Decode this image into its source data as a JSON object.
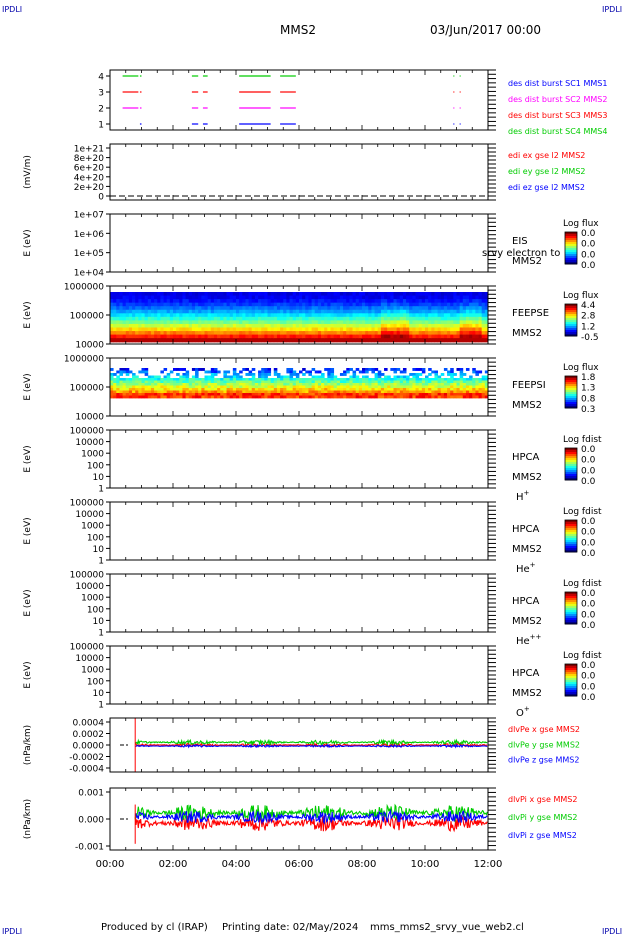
{
  "header": {
    "corner_left": "IPDLI",
    "corner_right": "IPDLI",
    "spacecraft": "MMS2",
    "date": "03/Jun/2017 00:00"
  },
  "footer": {
    "produced": "Produced by cl (IRAP)",
    "printing": "Printing date: 02/May/2024",
    "script": "mms_mms2_srvy_vue_web2.cl"
  },
  "time_axis": {
    "ticks": [
      "00:00",
      "02:00",
      "04:00",
      "06:00",
      "08:00",
      "10:00",
      "12:00"
    ],
    "range_hours": [
      0,
      12
    ]
  },
  "colors": {
    "mms1": "#0000ff",
    "mms2": "#ff00ff",
    "mms3": "#ff0000",
    "mms4": "#00cc00",
    "x": "#ff0000",
    "y": "#00cc00",
    "z": "#0000ff"
  },
  "chart_data": [
    {
      "type": "line",
      "id": "burst",
      "yticks": [
        "4",
        "3",
        "2",
        "1"
      ],
      "ylim": [
        0.5,
        4.5
      ],
      "legend": [
        {
          "label": "des dist burst SC1 MMS1",
          "color": "#0000ff"
        },
        {
          "label": "des dist burst SC2 MMS2",
          "color": "#ff00ff"
        },
        {
          "label": "des dist burst SC3 MMS3",
          "color": "#ff0000"
        },
        {
          "label": "des dist burst SC4 MMS4",
          "color": "#00cc00"
        }
      ],
      "series": [
        {
          "level": 4,
          "color": "#00cc00",
          "intervals": [
            [
              0.4,
              0.9
            ],
            [
              0.95,
              1.0
            ],
            [
              2.6,
              2.8
            ],
            [
              2.95,
              3.1
            ],
            [
              4.1,
              5.1
            ],
            [
              5.4,
              5.9
            ],
            [
              10.9,
              10.92
            ],
            [
              11.1,
              11.12
            ]
          ]
        },
        {
          "level": 3,
          "color": "#ff0000",
          "intervals": [
            [
              0.4,
              0.9
            ],
            [
              0.95,
              1.0
            ],
            [
              2.6,
              2.8
            ],
            [
              2.95,
              3.1
            ],
            [
              4.1,
              5.1
            ],
            [
              5.4,
              5.9
            ],
            [
              10.9,
              10.92
            ],
            [
              11.1,
              11.12
            ]
          ]
        },
        {
          "level": 2,
          "color": "#ff00ff",
          "intervals": [
            [
              0.4,
              0.9
            ],
            [
              0.95,
              1.0
            ],
            [
              2.6,
              2.8
            ],
            [
              2.95,
              3.1
            ],
            [
              4.1,
              5.1
            ],
            [
              5.4,
              5.9
            ],
            [
              10.9,
              10.92
            ],
            [
              11.1,
              11.12
            ]
          ]
        },
        {
          "level": 1,
          "color": "#0000ff",
          "intervals": [
            [
              0.95,
              1.0
            ],
            [
              2.6,
              2.8
            ],
            [
              2.95,
              3.1
            ],
            [
              4.1,
              5.1
            ],
            [
              5.4,
              5.9
            ],
            [
              10.9,
              10.92
            ],
            [
              11.1,
              11.12
            ]
          ]
        }
      ]
    },
    {
      "type": "line",
      "id": "efield",
      "ylabel": "(mV/m)",
      "yticks": [
        "1e+21",
        "8e+20",
        "6e+20",
        "4e+20",
        "2e+20",
        "0"
      ],
      "ylim": [
        0,
        1e+21
      ],
      "legend": [
        {
          "label": "edi ex gse l2 MMS2",
          "color": "#ff0000"
        },
        {
          "label": "edi ey gse l2 MMS2",
          "color": "#00cc00"
        },
        {
          "label": "edi ez gse l2 MMS2",
          "color": "#0000ff"
        }
      ],
      "dashed_zero": true
    },
    {
      "type": "heatmap",
      "id": "eis",
      "ylabel": "E (eV)",
      "yticks": [
        "1e+07",
        "1e+06",
        "1e+05",
        "1e+04"
      ],
      "instrument": "EIS",
      "spacecraft": "MMS2",
      "overlay_text": "srvy electron to",
      "colorbar_title": "Log flux",
      "colorbar_ticks": [
        "0.0",
        "0.0",
        "0.0",
        "0.0"
      ]
    },
    {
      "type": "heatmap",
      "id": "feepse",
      "ylabel": "E (eV)",
      "yticks": [
        "1000000",
        "100000",
        "10000"
      ],
      "instrument": "FEEPSE",
      "spacecraft": "MMS2",
      "colorbar_title": "Log flux",
      "colorbar_ticks": [
        "4.4",
        "2.8",
        "1.2",
        "-0.5"
      ],
      "band_profile": [
        0.0,
        0.15,
        0.35,
        0.55,
        0.75,
        0.85,
        0.95,
        1.0
      ]
    },
    {
      "type": "heatmap",
      "id": "feepsi",
      "ylabel": "E (eV)",
      "yticks": [
        "1000000",
        "100000",
        "10000"
      ],
      "instrument": "FEEPSI",
      "spacecraft": "MMS2",
      "colorbar_title": "Log flux",
      "colorbar_ticks": [
        "1.8",
        "1.3",
        "0.8",
        "0.3"
      ]
    },
    {
      "type": "heatmap",
      "id": "hpca_h",
      "ylabel": "E (eV)",
      "yticks": [
        "100000",
        "10000",
        "1000",
        "100",
        "10",
        "1"
      ],
      "instrument": "HPCA",
      "spacecraft": "MMS2",
      "species": "H",
      "species_sup": "+",
      "colorbar_title": "Log fdist",
      "colorbar_ticks": [
        "0.0",
        "0.0",
        "0.0",
        "0.0"
      ]
    },
    {
      "type": "heatmap",
      "id": "hpca_he",
      "ylabel": "E (eV)",
      "yticks": [
        "100000",
        "10000",
        "1000",
        "100",
        "10",
        "1"
      ],
      "instrument": "HPCA",
      "spacecraft": "MMS2",
      "species": "He",
      "species_sup": "+",
      "colorbar_title": "Log fdist",
      "colorbar_ticks": [
        "0.0",
        "0.0",
        "0.0",
        "0.0"
      ]
    },
    {
      "type": "heatmap",
      "id": "hpca_he2",
      "ylabel": "E (eV)",
      "yticks": [
        "100000",
        "10000",
        "1000",
        "100",
        "10",
        "1"
      ],
      "instrument": "HPCA",
      "spacecraft": "MMS2",
      "species": "He",
      "species_sup": "++",
      "colorbar_title": "Log fdist",
      "colorbar_ticks": [
        "0.0",
        "0.0",
        "0.0",
        "0.0"
      ]
    },
    {
      "type": "heatmap",
      "id": "hpca_o",
      "ylabel": "E (eV)",
      "yticks": [
        "100000",
        "10000",
        "1000",
        "100",
        "10",
        "1"
      ],
      "instrument": "HPCA",
      "spacecraft": "MMS2",
      "species": "O",
      "species_sup": "+",
      "colorbar_title": "Log fdist",
      "colorbar_ticks": [
        "0.0",
        "0.0",
        "0.0",
        "0.0"
      ]
    },
    {
      "type": "line",
      "id": "dpe",
      "ylabel": "(nPa/km)",
      "yticks": [
        "0.0004",
        "0.0002",
        "0.0000",
        "-0.0002",
        "-0.0004"
      ],
      "ylim": [
        -0.0005,
        0.0005
      ],
      "legend": [
        {
          "label": "dlvPe x gse MMS2",
          "color": "#ff0000"
        },
        {
          "label": "dlvPe y gse MMS2",
          "color": "#00cc00"
        },
        {
          "label": "dlvPe z gse MMS2",
          "color": "#0000ff"
        }
      ],
      "data_start_hour": 0.8,
      "series": [
        {
          "name": "x",
          "color": "#ff0000",
          "mean": 0.0,
          "noise": 3e-05
        },
        {
          "name": "y",
          "color": "#00cc00",
          "mean": 5e-05,
          "noise": 4e-05
        },
        {
          "name": "z",
          "color": "#0000ff",
          "mean": -2e-05,
          "noise": 2e-05
        }
      ],
      "spike": {
        "hour": 0.8,
        "min": -0.0005,
        "max": 0.0005
      }
    },
    {
      "type": "line",
      "id": "dpi",
      "ylabel": "(nPa/km)",
      "yticks": [
        "0.001",
        "0.000",
        "-0.001"
      ],
      "ylim": [
        -0.0015,
        0.0015
      ],
      "legend": [
        {
          "label": "dlvPi x gse MMS2",
          "color": "#ff0000"
        },
        {
          "label": "dlvPi y gse MMS2",
          "color": "#00cc00"
        },
        {
          "label": "dlvPi z gse MMS2",
          "color": "#0000ff"
        }
      ],
      "data_start_hour": 0.8,
      "series": [
        {
          "name": "x",
          "color": "#ff0000",
          "mean": -0.0002,
          "noise": 0.0004
        },
        {
          "name": "y",
          "color": "#00cc00",
          "mean": 0.0003,
          "noise": 0.0004
        },
        {
          "name": "z",
          "color": "#0000ff",
          "mean": 0.0001,
          "noise": 0.0003
        }
      ],
      "spike": {
        "hour": 0.8,
        "min": -0.0012,
        "max": 0.0007
      }
    }
  ]
}
